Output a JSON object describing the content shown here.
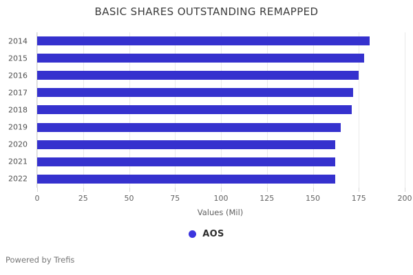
{
  "chart_data": {
    "type": "bar",
    "orientation": "horizontal",
    "title": "BASIC SHARES OUTSTANDING REMAPPED",
    "categories": [
      "2014",
      "2015",
      "2016",
      "2017",
      "2018",
      "2019",
      "2020",
      "2021",
      "2022"
    ],
    "series": [
      {
        "name": "AOS",
        "color": "#3531ce",
        "values": [
          181,
          178,
          175,
          172,
          171,
          165,
          162,
          162,
          162
        ]
      }
    ],
    "xlabel": "Values (Mil)",
    "ylabel": "",
    "xlim": [
      0,
      200
    ],
    "xticks": [
      0,
      25,
      50,
      75,
      100,
      125,
      150,
      175,
      200
    ],
    "grid": true,
    "legend_position": "bottom"
  },
  "legend": {
    "marker_color": "#3c35de"
  },
  "footer": {
    "text": "Powered by Trefis"
  }
}
